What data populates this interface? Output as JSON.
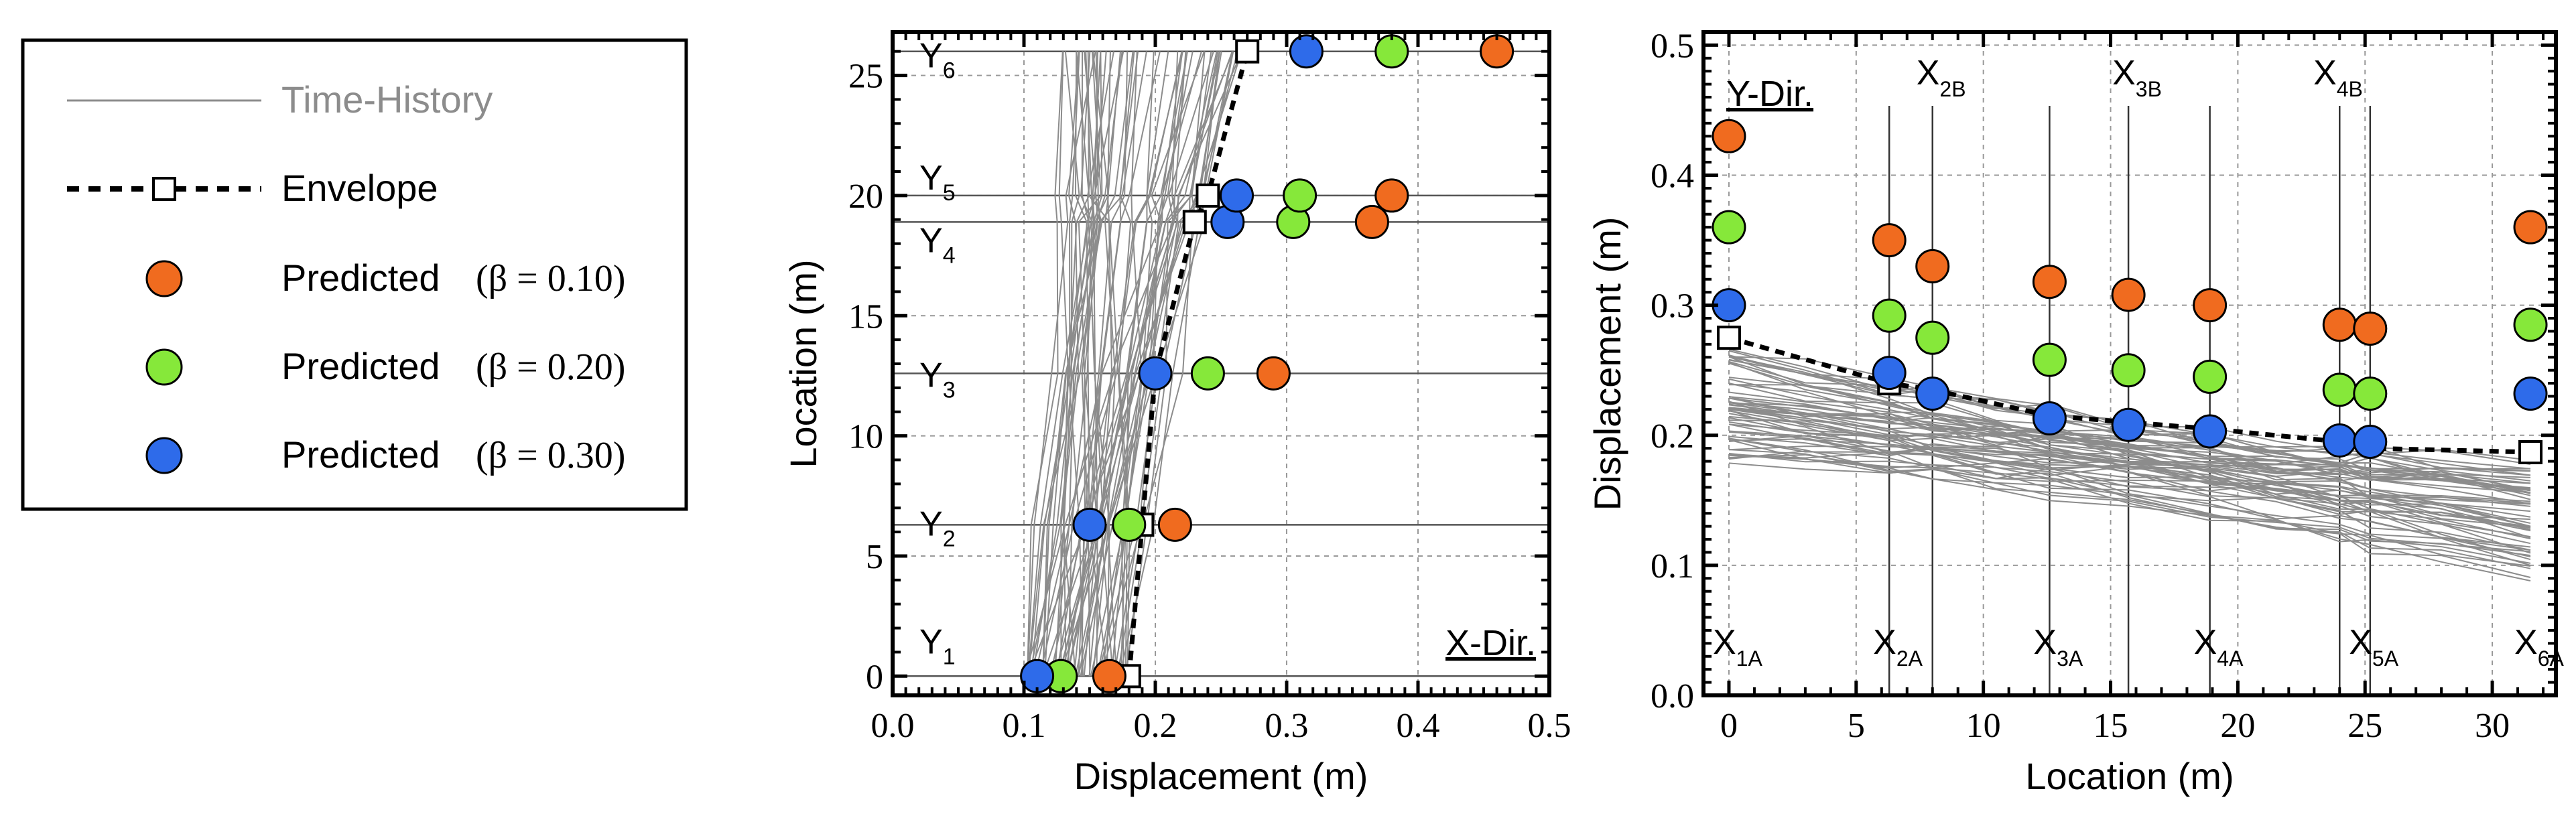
{
  "legend": {
    "time_history": "Time-History",
    "envelope": "Envelope",
    "pred_010": "Predicted",
    "pred_010_param": "(β = 0.10)",
    "pred_020": "Predicted",
    "pred_020_param": "(β = 0.20)",
    "pred_030": "Predicted",
    "pred_030_param": "(β = 0.30)"
  },
  "colors": {
    "beta_010": "#F06B1F",
    "beta_020": "#86E83A",
    "beta_030": "#2E6BEA",
    "time_history": "#8c8c8c",
    "envelope": "#000000"
  },
  "chart_data": [
    {
      "type": "scatter",
      "title": "",
      "xlabel": "Displacement (m)",
      "ylabel": "Location (m)",
      "xlim": [
        0.0,
        0.5
      ],
      "ylim": [
        -0.8,
        26.8
      ],
      "xticks": [
        "0.0",
        "0.1",
        "0.2",
        "0.3",
        "0.4",
        "0.5"
      ],
      "yticks": [
        "0",
        "5",
        "10",
        "15",
        "20",
        "25"
      ],
      "direction_label": "X-Dir.",
      "story_labels": [
        {
          "main": "Y",
          "sub": "1",
          "y": 1.5
        },
        {
          "main": "Y",
          "sub": "2",
          "y": 6.4
        },
        {
          "main": "Y",
          "sub": "3",
          "y": 12.6
        },
        {
          "main": "Y",
          "sub": "4",
          "y": 18.2
        },
        {
          "main": "Y",
          "sub": "5",
          "y": 20.8
        },
        {
          "main": "Y",
          "sub": "6",
          "y": 25.9
        }
      ],
      "levels": [
        0,
        6.3,
        12.6,
        18.9,
        20.0,
        26.0
      ],
      "envelope": {
        "x": [
          0.18,
          0.19,
          0.2,
          0.23,
          0.24,
          0.27
        ],
        "y": [
          0,
          6.3,
          12.6,
          18.9,
          20.0,
          26.0
        ]
      },
      "time_history": {
        "count": 60,
        "base_x_range": [
          0.1,
          0.18
        ],
        "top_x_range": [
          0.13,
          0.27
        ]
      },
      "series": [
        {
          "name": "Predicted (β = 0.10)",
          "x": [
            0.165,
            0.215,
            0.29,
            0.365,
            0.38,
            0.46
          ],
          "y": [
            0,
            6.3,
            12.6,
            18.9,
            20.0,
            26.0
          ]
        },
        {
          "name": "Predicted (β = 0.20)",
          "x": [
            0.128,
            0.18,
            0.24,
            0.305,
            0.31,
            0.38
          ],
          "y": [
            0,
            6.3,
            12.6,
            18.9,
            20.0,
            26.0
          ]
        },
        {
          "name": "Predicted (β = 0.30)",
          "x": [
            0.11,
            0.15,
            0.2,
            0.255,
            0.262,
            0.315
          ],
          "y": [
            0,
            6.3,
            12.6,
            18.9,
            20.0,
            26.0
          ]
        }
      ]
    },
    {
      "type": "scatter",
      "title": "",
      "xlabel": "Location (m)",
      "ylabel": "Displacement (m)",
      "xlim": [
        -1,
        32.5
      ],
      "ylim": [
        0.0,
        0.51
      ],
      "xticks": [
        "0",
        "5",
        "10",
        "15",
        "20",
        "25",
        "30"
      ],
      "yticks": [
        "0.0",
        "0.1",
        "0.2",
        "0.3",
        "0.4",
        "0.5"
      ],
      "direction_label": "Y-Dir.",
      "wall_labels_bottom": [
        {
          "main": "X",
          "sub": "1A",
          "x": 0
        },
        {
          "main": "X",
          "sub": "2A",
          "x": 6.3
        },
        {
          "main": "X",
          "sub": "3A",
          "x": 12.6
        },
        {
          "main": "X",
          "sub": "4A",
          "x": 18.9
        },
        {
          "main": "X",
          "sub": "5A",
          "x": 25.0
        },
        {
          "main": "X",
          "sub": "6A",
          "x": 31.5
        }
      ],
      "wall_labels_top": [
        {
          "main": "X",
          "sub": "2B",
          "x": 8.0
        },
        {
          "main": "X",
          "sub": "3B",
          "x": 15.7
        },
        {
          "main": "X",
          "sub": "4B",
          "x": 23.6
        }
      ],
      "wall_positions": [
        6.3,
        8.0,
        12.6,
        15.7,
        18.9,
        24.0,
        25.2
      ],
      "envelope": {
        "x": [
          0,
          6.3,
          8.0,
          12.6,
          15.7,
          18.9,
          24.0,
          25.2,
          31.5
        ],
        "y": [
          0.275,
          0.24,
          0.235,
          0.215,
          0.21,
          0.205,
          0.195,
          0.19,
          0.187
        ]
      },
      "time_history": {
        "count": 60,
        "start_range": [
          0.18,
          0.265
        ],
        "end_range": [
          0.09,
          0.18
        ]
      },
      "series": [
        {
          "name": "Predicted (β = 0.10)",
          "x": [
            0,
            6.3,
            8.0,
            12.6,
            15.7,
            18.9,
            24.0,
            25.2,
            31.5
          ],
          "y": [
            0.43,
            0.35,
            0.33,
            0.318,
            0.308,
            0.3,
            0.285,
            0.282,
            0.36
          ]
        },
        {
          "name": "Predicted (β = 0.20)",
          "x": [
            0,
            6.3,
            8.0,
            12.6,
            15.7,
            18.9,
            24.0,
            25.2,
            31.5
          ],
          "y": [
            0.36,
            0.292,
            0.275,
            0.258,
            0.25,
            0.245,
            0.235,
            0.232,
            0.285
          ]
        },
        {
          "name": "Predicted (β = 0.30)",
          "x": [
            0,
            6.3,
            8.0,
            12.6,
            15.7,
            18.9,
            24.0,
            25.2,
            31.5
          ],
          "y": [
            0.3,
            0.248,
            0.232,
            0.213,
            0.208,
            0.203,
            0.196,
            0.195,
            0.232
          ]
        }
      ]
    }
  ]
}
